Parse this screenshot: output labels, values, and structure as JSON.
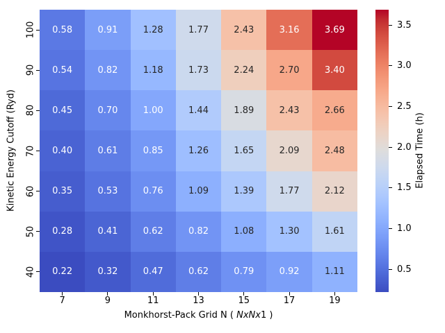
{
  "chart_data": {
    "type": "heatmap",
    "xlabel_pre": "Monkhorst-Pack Grid N ( ",
    "xlabel_italic": "NxNx",
    "xlabel_post": "1 )",
    "ylabel": "Kinetic Energy Cutoff (Ryd)",
    "x_tick_labels": [
      "7",
      "9",
      "11",
      "13",
      "15",
      "17",
      "19"
    ],
    "y_tick_labels": [
      "100",
      "90",
      "80",
      "70",
      "60",
      "50",
      "40"
    ],
    "values": [
      [
        0.58,
        0.91,
        1.28,
        1.77,
        2.43,
        3.16,
        3.69
      ],
      [
        0.54,
        0.82,
        1.18,
        1.73,
        2.24,
        2.7,
        3.4
      ],
      [
        0.45,
        0.7,
        1.0,
        1.44,
        1.89,
        2.43,
        2.66
      ],
      [
        0.4,
        0.61,
        0.85,
        1.26,
        1.65,
        2.09,
        2.48
      ],
      [
        0.35,
        0.53,
        0.76,
        1.09,
        1.39,
        1.77,
        2.12
      ],
      [
        0.28,
        0.41,
        0.62,
        0.82,
        1.08,
        1.3,
        1.61
      ],
      [
        0.22,
        0.32,
        0.47,
        0.62,
        0.79,
        0.92,
        1.11
      ]
    ],
    "vmin": 0.22,
    "vmax": 3.69,
    "colorbar": {
      "label": "Elapsed Time (h)",
      "ticks": [
        3.5,
        3.0,
        2.5,
        2.0,
        1.5,
        1.0,
        0.5
      ]
    },
    "colormap_name": "coolwarm",
    "colormap_stops": [
      "#3B4CC0",
      "#445ACC",
      "#4D68D7",
      "#5775E1",
      "#6282EA",
      "#6C8EF1",
      "#779AF7",
      "#82A5FB",
      "#8DB0FE",
      "#98B9FF",
      "#A3C2FF",
      "#AEC9FD",
      "#B8D0F9",
      "#C2D5F4",
      "#CCD9EE",
      "#D5DBE6",
      "#DDDDDD",
      "#E5D8D1",
      "#ECD3C5",
      "#F1CCB9",
      "#F5C4AD",
      "#F7BBA0",
      "#F7B194",
      "#F7A687",
      "#F49A7B",
      "#F18D6F",
      "#EC7F63",
      "#E57058",
      "#DE604D",
      "#D55042",
      "#CB3E38",
      "#C0282F",
      "#B40426"
    ],
    "annot_color_light": "#ffffff",
    "annot_color_dark": "#262626",
    "tick_color": "#000000",
    "background_color": "#ffffff",
    "legend_position": "right-colorbar",
    "grid": "off"
  }
}
